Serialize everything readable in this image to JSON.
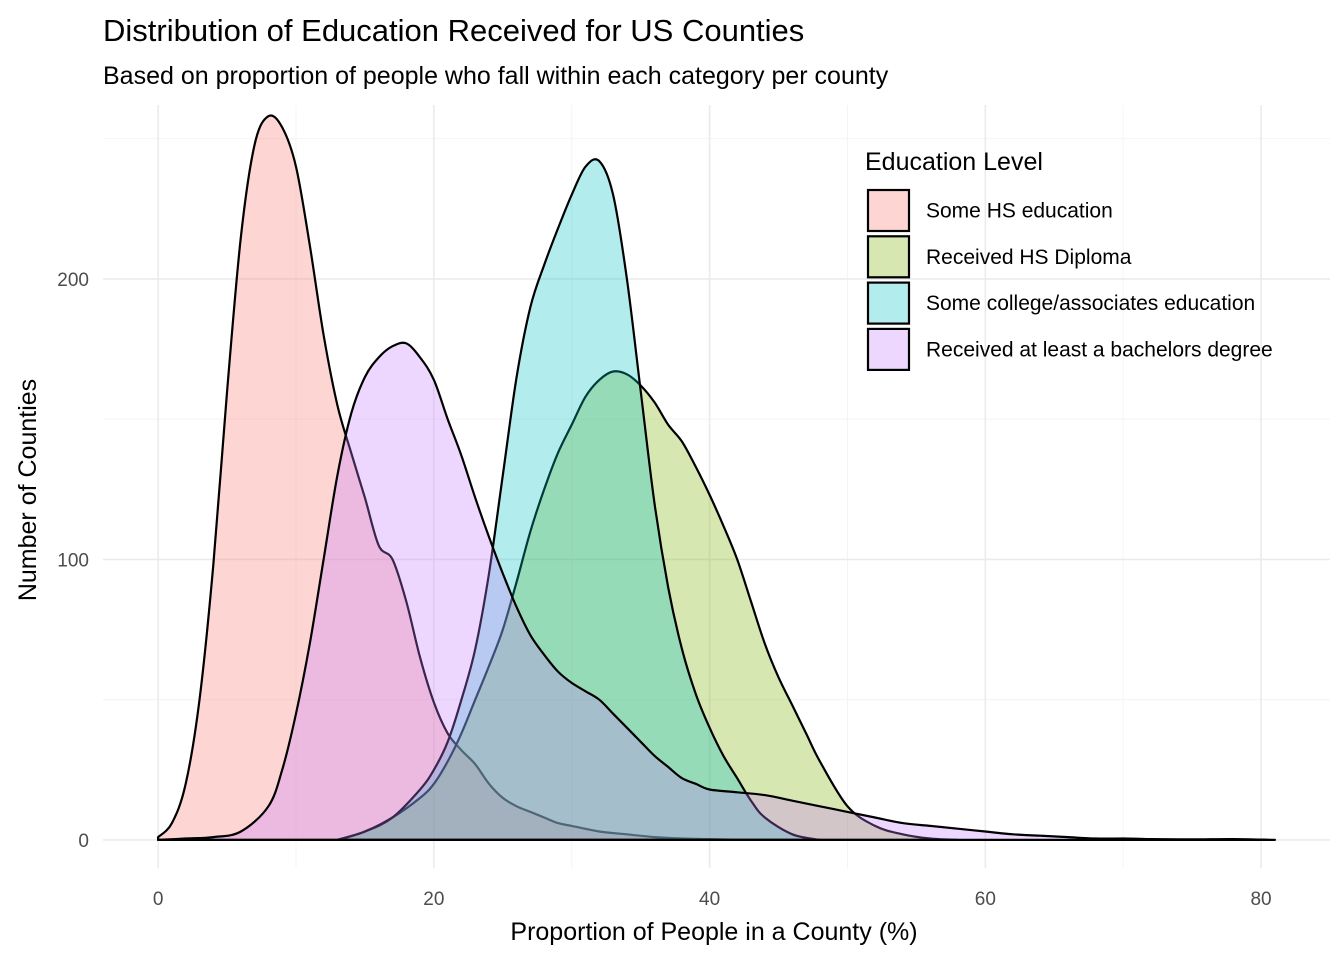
{
  "chart_data": {
    "type": "area",
    "title": "Distribution of Education Received for US Counties",
    "subtitle": "Based on proportion of people who fall within each category per county",
    "xlabel": "Proportion of People in a County (%)",
    "ylabel": "Number of Counties",
    "xlim": [
      -4,
      85
    ],
    "ylim": [
      -10,
      262
    ],
    "xticks": [
      0,
      20,
      40,
      60,
      80
    ],
    "yticks": [
      0,
      100,
      200
    ],
    "grid": true,
    "legend": {
      "title": "Education Level",
      "position": "top-right"
    },
    "series": [
      {
        "name": "Some HS education",
        "color": "#F8766D",
        "x": [
          0,
          1,
          2,
          3,
          4,
          5,
          6,
          7,
          8,
          9,
          10,
          11,
          12,
          13,
          14,
          15,
          16,
          17,
          18,
          19,
          20,
          21,
          22,
          23,
          24,
          25,
          26,
          27,
          28,
          29,
          30,
          32,
          34,
          36,
          38,
          40,
          42,
          44,
          46
        ],
        "y": [
          1,
          6,
          20,
          50,
          98,
          160,
          215,
          248,
          258,
          254,
          240,
          212,
          180,
          155,
          138,
          122,
          105,
          100,
          85,
          65,
          49,
          38,
          32,
          27,
          20,
          15,
          12,
          10,
          8,
          6,
          5,
          3,
          2,
          1,
          0.5,
          0.3,
          0.1,
          0,
          0
        ]
      },
      {
        "name": "Received HS Diploma",
        "color": "#7CAE00",
        "x": [
          13,
          15,
          17,
          19,
          20,
          21,
          22,
          23,
          24,
          25,
          26,
          27,
          28,
          29,
          30,
          31,
          32,
          33,
          34,
          35,
          36,
          37,
          38,
          39,
          40,
          41,
          42,
          43,
          44,
          45,
          46,
          47,
          48,
          50,
          52,
          54,
          56,
          58
        ],
        "y": [
          0,
          3,
          8,
          15,
          20,
          28,
          38,
          50,
          62,
          75,
          92,
          110,
          125,
          138,
          148,
          158,
          164,
          167,
          166,
          162,
          156,
          148,
          142,
          133,
          123,
          112,
          100,
          85,
          70,
          58,
          48,
          38,
          28,
          12,
          5,
          2,
          0.5,
          0
        ]
      },
      {
        "name": "Some college/associates education",
        "color": "#00BFC4",
        "x": [
          13,
          15,
          17,
          19,
          20,
          21,
          22,
          23,
          24,
          25,
          26,
          27,
          28,
          29,
          30,
          31,
          32,
          33,
          34,
          35,
          36,
          37,
          38,
          39,
          40,
          41,
          42,
          43,
          44,
          46,
          48
        ],
        "y": [
          0,
          3,
          8,
          18,
          25,
          35,
          50,
          68,
          95,
          130,
          165,
          190,
          205,
          218,
          230,
          240,
          242,
          230,
          200,
          160,
          120,
          90,
          68,
          52,
          40,
          30,
          22,
          14,
          8,
          2,
          0
        ]
      },
      {
        "name": "Received at least a bachelors degree",
        "color": "#C77CFF",
        "x": [
          0,
          2,
          4,
          6,
          8,
          9,
          10,
          11,
          12,
          13,
          14,
          15,
          16,
          17,
          18,
          19,
          20,
          21,
          22,
          23,
          24,
          25,
          26,
          27,
          28,
          29,
          30,
          31,
          32,
          33,
          34,
          35,
          36,
          37,
          38,
          39,
          40,
          42,
          44,
          46,
          48,
          50,
          52,
          54,
          56,
          58,
          60,
          62,
          64,
          66,
          68,
          70,
          72,
          75,
          78,
          81
        ],
        "y": [
          0,
          0.5,
          1,
          3,
          12,
          25,
          45,
          70,
          100,
          130,
          152,
          165,
          172,
          176,
          177,
          172,
          164,
          150,
          137,
          122,
          108,
          95,
          83,
          73,
          66,
          60,
          56,
          53,
          50,
          45,
          40,
          35,
          30,
          26,
          22,
          20,
          18,
          17,
          16,
          14,
          12,
          10,
          8,
          6,
          5,
          4,
          3,
          2,
          1.5,
          1,
          0.5,
          0.5,
          0.3,
          0.2,
          0.3,
          0
        ]
      }
    ]
  }
}
